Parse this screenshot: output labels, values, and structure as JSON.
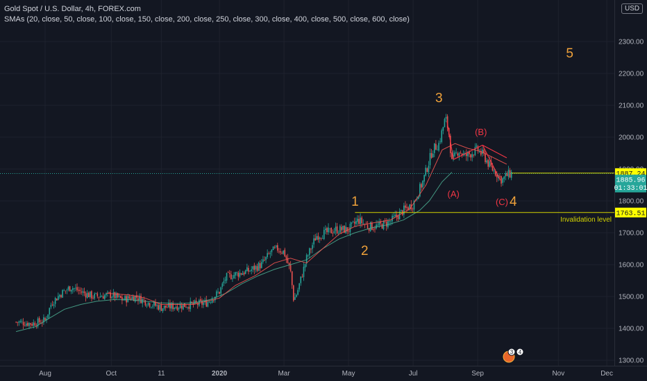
{
  "header": {
    "title": "Gold Spot / U.S. Dollar, 4h, FOREX.com",
    "indicators": "SMAs (20, close, 50, close, 100, close, 150, close, 200, close, 250, close, 300, close, 400, close, 500, close, 600, close)"
  },
  "currency_button": "USD",
  "colors": {
    "background": "#131722",
    "candle_up": "#26a69a",
    "candle_down": "#ef5350",
    "sma": "#ef5350",
    "sma_long": "#4caf93",
    "wave_label": "#f0a23a",
    "correction_label": "#f23645",
    "level_line": "#d4d400"
  },
  "chart_data": {
    "type": "candlestick",
    "y_range": [
      1300,
      2400
    ],
    "y_ticks": [
      "1300.00",
      "1400.00",
      "1500.00",
      "1600.00",
      "1700.00",
      "1800.00",
      "1900.00",
      "2000.00",
      "2100.00",
      "2200.00",
      "2300.00"
    ],
    "y_tick_values": [
      1300,
      1400,
      1500,
      1600,
      1700,
      1800,
      1900,
      2000,
      2100,
      2200,
      2300
    ],
    "x_ticks": [
      "Aug",
      "Oct",
      "11",
      "2020",
      "Mar",
      "May",
      "Jul",
      "Sep",
      "Nov",
      "Dec"
    ],
    "x_tick_months": [
      0.9,
      2.95,
      4.5,
      6.3,
      8.3,
      10.3,
      12.3,
      14.3,
      16.8,
      18.3
    ],
    "price_path": [
      [
        0,
        1420
      ],
      [
        0.5,
        1415
      ],
      [
        0.9,
        1425
      ],
      [
        1.1,
        1480
      ],
      [
        1.4,
        1510
      ],
      [
        1.7,
        1530
      ],
      [
        2.0,
        1515
      ],
      [
        2.4,
        1500
      ],
      [
        2.95,
        1505
      ],
      [
        3.3,
        1490
      ],
      [
        3.7,
        1500
      ],
      [
        4.1,
        1480
      ],
      [
        4.5,
        1465
      ],
      [
        5.0,
        1470
      ],
      [
        5.5,
        1475
      ],
      [
        5.9,
        1480
      ],
      [
        6.3,
        1515
      ],
      [
        6.5,
        1560
      ],
      [
        6.8,
        1570
      ],
      [
        7.2,
        1580
      ],
      [
        7.6,
        1600
      ],
      [
        7.9,
        1640
      ],
      [
        8.1,
        1650
      ],
      [
        8.3,
        1640
      ],
      [
        8.5,
        1580
      ],
      [
        8.6,
        1490
      ],
      [
        8.7,
        1510
      ],
      [
        9.0,
        1620
      ],
      [
        9.3,
        1690
      ],
      [
        9.6,
        1700
      ],
      [
        9.9,
        1710
      ],
      [
        10.3,
        1710
      ],
      [
        10.6,
        1740
      ],
      [
        10.9,
        1720
      ],
      [
        11.2,
        1720
      ],
      [
        11.6,
        1735
      ],
      [
        12.0,
        1770
      ],
      [
        12.3,
        1790
      ],
      [
        12.6,
        1860
      ],
      [
        12.9,
        1960
      ],
      [
        13.1,
        1980
      ],
      [
        13.3,
        2060
      ],
      [
        13.4,
        2020
      ],
      [
        13.5,
        1920
      ],
      [
        13.7,
        1960
      ],
      [
        13.9,
        1940
      ],
      [
        14.1,
        1950
      ],
      [
        14.3,
        1960
      ],
      [
        14.5,
        1940
      ],
      [
        14.7,
        1905
      ],
      [
        14.9,
        1885
      ],
      [
        15.05,
        1865
      ],
      [
        15.2,
        1880
      ],
      [
        15.35,
        1887
      ]
    ],
    "sma_short": [
      [
        2.8,
        1510
      ],
      [
        3.5,
        1505
      ],
      [
        4.0,
        1495
      ],
      [
        4.5,
        1475
      ],
      [
        5.0,
        1475
      ],
      [
        5.5,
        1475
      ],
      [
        6.3,
        1495
      ],
      [
        6.8,
        1535
      ],
      [
        7.4,
        1565
      ],
      [
        8.0,
        1605
      ],
      [
        8.5,
        1620
      ],
      [
        9.0,
        1605
      ],
      [
        9.5,
        1650
      ],
      [
        10.0,
        1695
      ],
      [
        10.5,
        1720
      ],
      [
        11.0,
        1730
      ],
      [
        11.6,
        1740
      ],
      [
        12.2,
        1775
      ],
      [
        12.7,
        1850
      ],
      [
        13.2,
        1960
      ],
      [
        13.6,
        1980
      ],
      [
        14.0,
        1965
      ],
      [
        14.4,
        1955
      ],
      [
        14.7,
        1940
      ],
      [
        15.0,
        1925
      ],
      [
        15.2,
        1915
      ]
    ],
    "sma_long": [
      [
        0,
        1390
      ],
      [
        0.6,
        1405
      ],
      [
        1.0,
        1430
      ],
      [
        1.5,
        1460
      ],
      [
        2.0,
        1475
      ],
      [
        2.5,
        1485
      ],
      [
        3.0,
        1490
      ],
      [
        3.5,
        1490
      ],
      [
        4.0,
        1485
      ],
      [
        4.5,
        1480
      ],
      [
        5.0,
        1478
      ],
      [
        5.5,
        1480
      ],
      [
        6.0,
        1490
      ],
      [
        6.5,
        1510
      ],
      [
        7.0,
        1540
      ],
      [
        7.5,
        1565
      ],
      [
        8.0,
        1585
      ],
      [
        8.5,
        1600
      ],
      [
        9.0,
        1615
      ],
      [
        9.5,
        1650
      ],
      [
        10.0,
        1680
      ],
      [
        10.5,
        1700
      ],
      [
        11.0,
        1715
      ],
      [
        11.5,
        1725
      ],
      [
        12.0,
        1740
      ],
      [
        12.5,
        1770
      ],
      [
        12.8,
        1800
      ],
      [
        13.2,
        1860
      ],
      [
        13.5,
        1890
      ]
    ],
    "correction_lines": [
      [
        [
          13.35,
          2050
        ],
        [
          13.55,
          1930
        ]
      ],
      [
        [
          13.55,
          1930
        ],
        [
          14.45,
          1975
        ]
      ],
      [
        [
          14.45,
          1975
        ],
        [
          15.0,
          1865
        ]
      ],
      [
        [
          14.45,
          1975
        ],
        [
          15.2,
          1935
        ]
      ]
    ],
    "wave_labels": [
      {
        "text": "1",
        "month": 10.5,
        "price": 1785
      },
      {
        "text": "2",
        "month": 10.8,
        "price": 1630
      },
      {
        "text": "3",
        "month": 13.1,
        "price": 2110
      },
      {
        "text": "4",
        "month": 15.4,
        "price": 1785
      },
      {
        "text": "5",
        "month": 17.15,
        "price": 2250
      }
    ],
    "correction_labels": [
      {
        "text": "(A)",
        "month": 13.55,
        "price": 1812
      },
      {
        "text": "(B)",
        "month": 14.4,
        "price": 2007
      },
      {
        "text": "(C)",
        "month": 15.05,
        "price": 1787
      }
    ],
    "invalidation": {
      "price": 1763.51,
      "start_month": 10.5,
      "label": "Invalidation level"
    },
    "resistance": {
      "price": 1887.24,
      "start_month": 15.35
    },
    "price_tags": [
      {
        "text": "1887.24",
        "price": 1887.24,
        "style": "yellow"
      },
      {
        "text": "1885.96",
        "price": 1867,
        "style": "green"
      },
      {
        "text": "01:33:01",
        "price": 1842,
        "style": "green"
      },
      {
        "text": "1763.51",
        "price": 1763.51,
        "style": "yellow"
      }
    ],
    "current_price": 1885.96,
    "countdown": "01:33:01"
  },
  "badges": [
    "3",
    "4"
  ]
}
